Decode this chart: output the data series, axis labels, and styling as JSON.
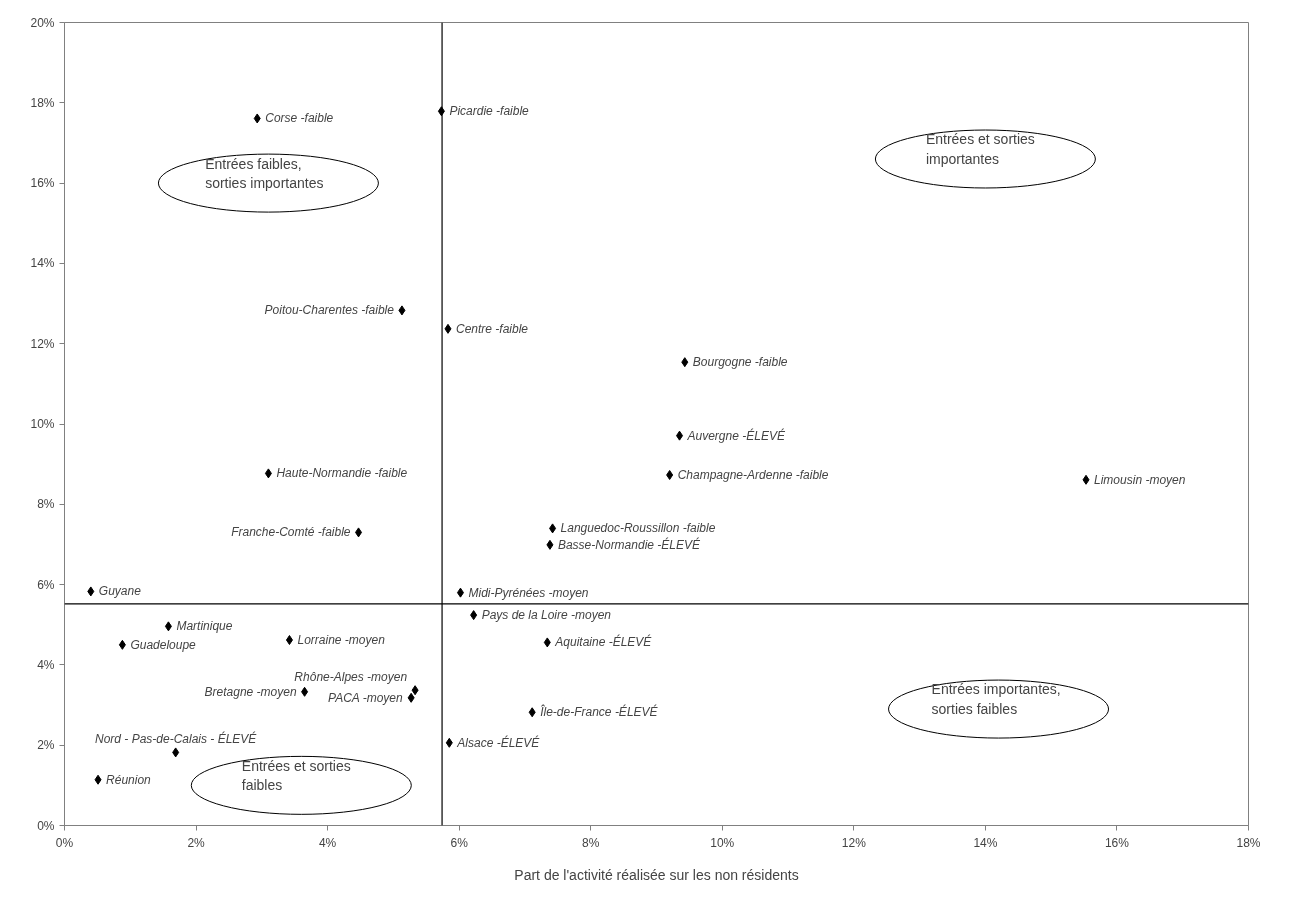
{
  "chart_data": {
    "type": "scatter",
    "xlabel": "Part de l'activité réalisée sur les non résidents",
    "x": [
      2.93,
      5.73,
      5.13,
      5.83,
      3.1,
      4.47,
      0.4,
      1.58,
      0.88,
      3.42,
      3.65,
      5.33,
      5.27,
      1.69,
      0.51,
      9.43,
      9.35,
      9.2,
      7.42,
      7.38,
      6.02,
      6.22,
      7.34,
      7.11,
      5.85,
      15.53
    ],
    "values": [
      17.61,
      17.79,
      12.83,
      12.37,
      8.77,
      7.3,
      5.83,
      4.96,
      4.5,
      4.62,
      3.33,
      3.37,
      3.18,
      1.82,
      1.14,
      11.54,
      9.71,
      8.73,
      7.4,
      6.99,
      5.8,
      5.24,
      4.56,
      2.82,
      2.06,
      8.61
    ],
    "color": "#000000",
    "marker": "diamond",
    "grid": false,
    "xlim": [
      0,
      18
    ],
    "ylim": [
      0,
      20
    ],
    "xticks": [
      {
        "value": 0,
        "label": "0%"
      },
      {
        "value": 2,
        "label": "2%"
      },
      {
        "value": 4,
        "label": "4%"
      },
      {
        "value": 6,
        "label": "6%"
      },
      {
        "value": 8,
        "label": "8%"
      },
      {
        "value": 10,
        "label": "10%"
      },
      {
        "value": 12,
        "label": "12%"
      },
      {
        "value": 14,
        "label": "14%"
      },
      {
        "value": 16,
        "label": "16%"
      },
      {
        "value": 18,
        "label": "18%"
      }
    ],
    "yticks": [
      {
        "value": 0,
        "label": "0%"
      },
      {
        "value": 2,
        "label": "2%"
      },
      {
        "value": 4,
        "label": "4%"
      },
      {
        "value": 6,
        "label": "6%"
      },
      {
        "value": 8,
        "label": "8%"
      },
      {
        "value": 10,
        "label": "10%"
      },
      {
        "value": 12,
        "label": "12%"
      },
      {
        "value": 14,
        "label": "14%"
      },
      {
        "value": 16,
        "label": "16%"
      },
      {
        "value": 18,
        "label": "18%"
      },
      {
        "value": 20,
        "label": "20%"
      }
    ],
    "ref_lines": [
      {
        "axis": "x",
        "value": 5.74,
        "color": "#000000"
      },
      {
        "axis": "y",
        "value": 5.52,
        "color": "#000000"
      }
    ],
    "annotations": [
      {
        "text": "Corse -faible",
        "x": 2.93,
        "y": 17.61
      },
      {
        "text": "Picardie -faible",
        "x": 5.73,
        "y": 17.79
      },
      {
        "text": "Poitou-Charentes -faible",
        "x": 5.13,
        "y": 12.83
      },
      {
        "text": "Centre -faible",
        "x": 5.83,
        "y": 12.37
      },
      {
        "text": "Haute-Normandie -faible",
        "x": 3.1,
        "y": 8.77
      },
      {
        "text": "Franche-Comté -faible",
        "x": 4.47,
        "y": 7.3
      },
      {
        "text": "Guyane",
        "x": 0.4,
        "y": 5.83
      },
      {
        "text": "Martinique",
        "x": 1.58,
        "y": 4.96
      },
      {
        "text": "Guadeloupe",
        "x": 0.88,
        "y": 4.5
      },
      {
        "text": "Lorraine -moyen",
        "x": 3.42,
        "y": 4.62
      },
      {
        "text": "Bretagne -moyen",
        "x": 3.65,
        "y": 3.33
      },
      {
        "text": "Rhône-Alpes -moyen",
        "x": 5.33,
        "y": 3.37
      },
      {
        "text": "PACA -moyen",
        "x": 5.27,
        "y": 3.18
      },
      {
        "text": "Nord - Pas-de-Calais - ÉLEVÉ",
        "x": 1.69,
        "y": 1.82
      },
      {
        "text": "Réunion",
        "x": 0.51,
        "y": 1.14
      },
      {
        "text": "Bourgogne -faible",
        "x": 9.43,
        "y": 11.54
      },
      {
        "text": "Auvergne -ÉLEVÉ",
        "x": 9.35,
        "y": 9.71
      },
      {
        "text": "Champagne-Ardenne -faible",
        "x": 9.2,
        "y": 8.73
      },
      {
        "text": "Languedoc-Roussillon -faible",
        "x": 7.42,
        "y": 7.4
      },
      {
        "text": "Basse-Normandie  -ÉLEVÉ",
        "x": 7.38,
        "y": 6.99
      },
      {
        "text": "Midi-Pyrénées -moyen",
        "x": 6.02,
        "y": 5.8
      },
      {
        "text": "Pays de la Loire -moyen",
        "x": 6.22,
        "y": 5.24
      },
      {
        "text": "Aquitaine -ÉLEVÉ",
        "x": 7.34,
        "y": 4.56
      },
      {
        "text": "Île-de-France -ÉLEVÉ",
        "x": 7.11,
        "y": 2.82
      },
      {
        "text": "Alsace -ÉLEVÉ",
        "x": 5.85,
        "y": 2.06
      },
      {
        "text": "Limousin -moyen",
        "x": 15.53,
        "y": 8.61
      },
      "Entrées faibles,\nsorties importantes",
      "Entrées et sorties\nimportantes",
      "Entrées importantes,\nsorties faibles",
      "Entrées et sorties\nfaibles"
    ]
  }
}
